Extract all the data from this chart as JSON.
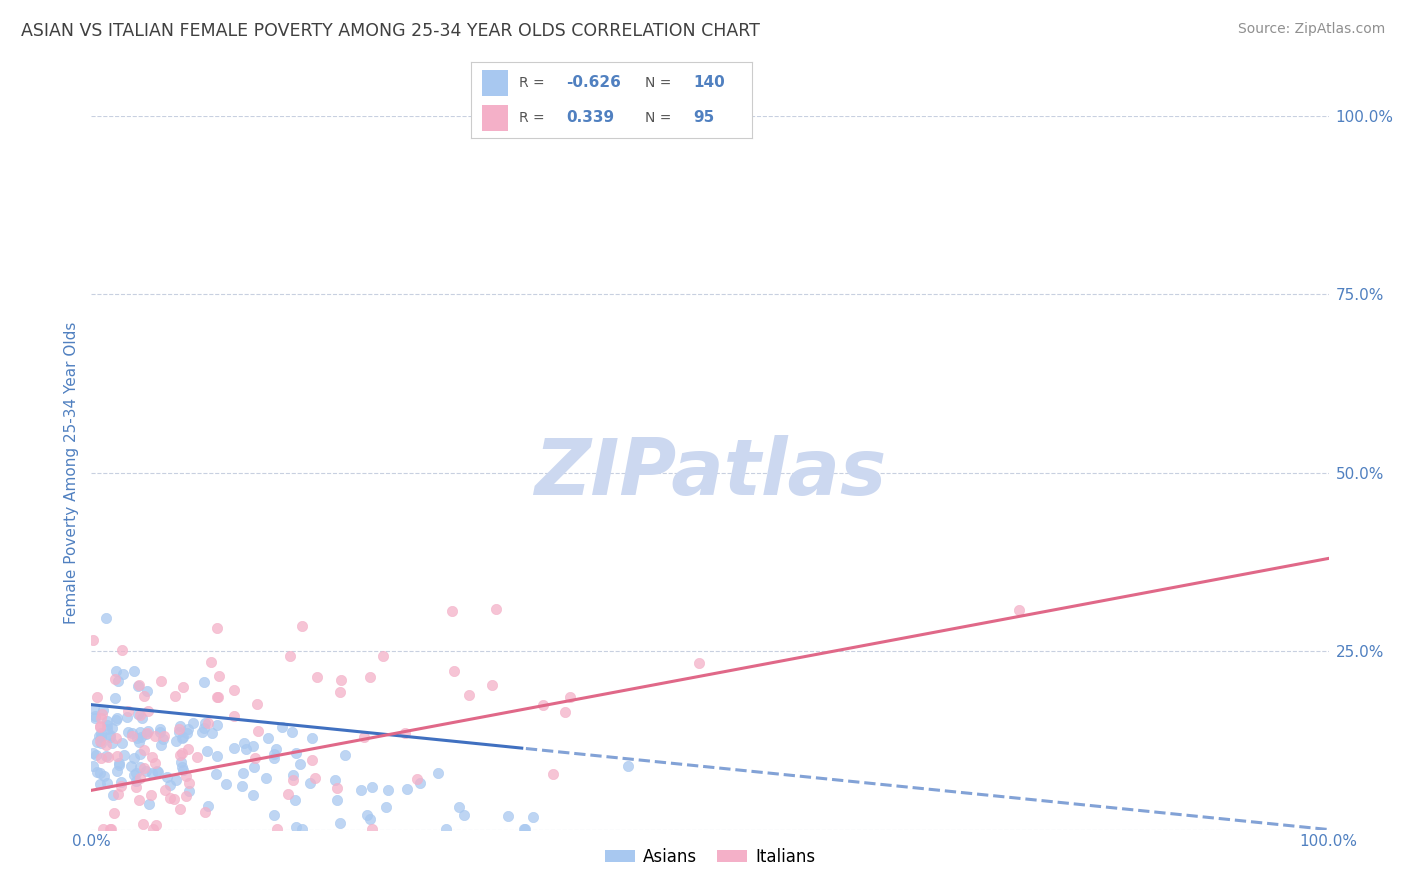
{
  "title": "ASIAN VS ITALIAN FEMALE POVERTY AMONG 25-34 YEAR OLDS CORRELATION CHART",
  "source": "Source: ZipAtlas.com",
  "ylabel": "Female Poverty Among 25-34 Year Olds",
  "xlim": [
    0,
    1.0
  ],
  "ylim": [
    0,
    1.0
  ],
  "ytick_positions": [
    0.0,
    0.25,
    0.5,
    0.75,
    1.0
  ],
  "right_ytick_labels": [
    "100.0%",
    "75.0%",
    "50.0%",
    "25.0%"
  ],
  "right_ytick_positions": [
    1.0,
    0.75,
    0.5,
    0.25
  ],
  "legend_blue_r": "-0.626",
  "legend_blue_n": "140",
  "legend_pink_r": "0.339",
  "legend_pink_n": "95",
  "blue_color": "#a8c8f0",
  "pink_color": "#f4b0c8",
  "blue_line_color": "#4070c0",
  "pink_line_color": "#e06888",
  "title_color": "#404040",
  "source_color": "#909090",
  "axis_label_color": "#5080c0",
  "tick_label_color": "#5080c0",
  "watermark_color": "#ccd8f0",
  "grid_color": "#c8d0e0",
  "background_color": "#ffffff",
  "legend_border_color": "#cccccc",
  "seed": 42,
  "n_blue": 140,
  "n_pink": 95,
  "blue_r": -0.626,
  "pink_r": 0.339,
  "blue_intercept": 0.175,
  "blue_slope": -0.175,
  "pink_intercept": 0.055,
  "pink_slope": 0.325
}
